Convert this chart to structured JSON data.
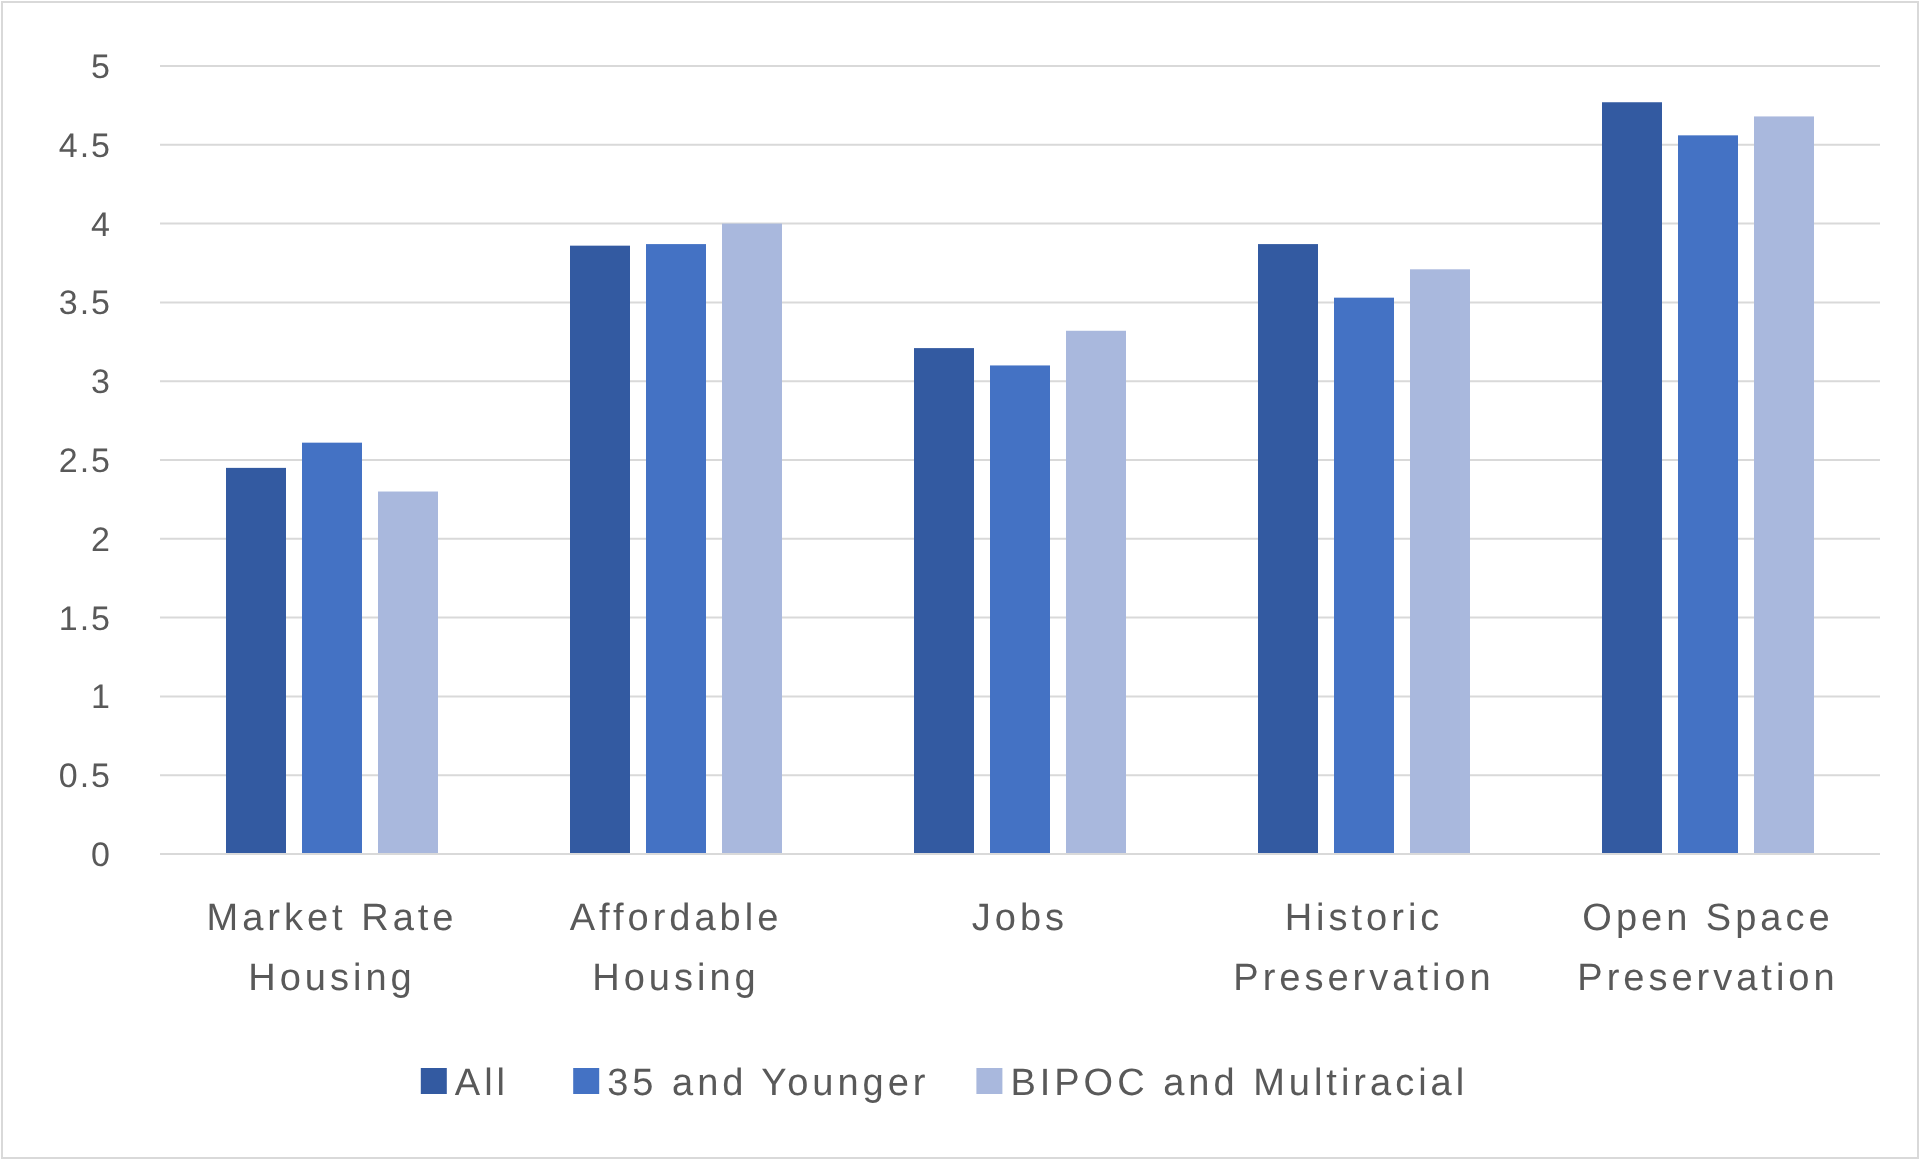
{
  "chart_data": {
    "type": "bar",
    "categories": [
      "Market Rate Housing",
      "Affordable Housing",
      "Jobs",
      "Historic Preservation",
      "Open Space Preservation"
    ],
    "series": [
      {
        "name": "All",
        "color": "#335aa1",
        "values": [
          2.45,
          3.86,
          3.21,
          3.87,
          4.77
        ]
      },
      {
        "name": "35 and Younger",
        "color": "#4472c4",
        "values": [
          2.61,
          3.87,
          3.1,
          3.53,
          4.56
        ]
      },
      {
        "name": "BIPOC and Multiracial",
        "color": "#a9b8dd",
        "values": [
          2.3,
          4.0,
          3.32,
          3.71,
          4.68
        ]
      }
    ],
    "ylim": [
      0,
      5
    ],
    "yticks": [
      0,
      0.5,
      1,
      1.5,
      2,
      2.5,
      3,
      3.5,
      4,
      4.5,
      5
    ],
    "grid": "y",
    "legend": "bottom"
  }
}
